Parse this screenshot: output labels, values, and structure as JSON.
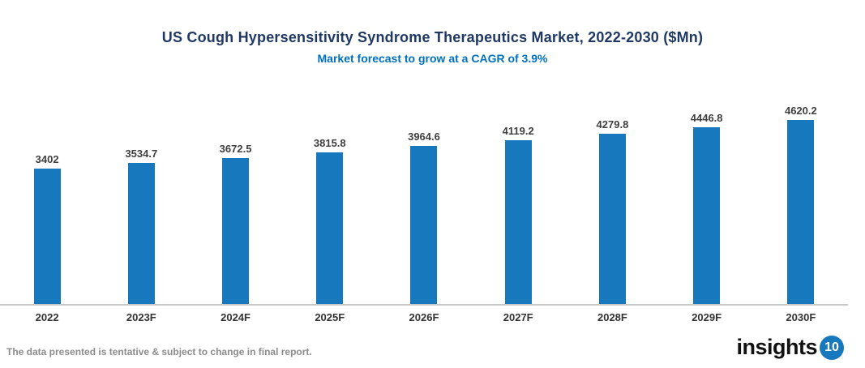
{
  "header": {
    "title": "US Cough Hypersensitivity Syndrome Therapeutics Market, 2022-2030 ($Mn)",
    "subtitle": "Market forecast to grow at a CAGR of 3.9%"
  },
  "chart_data": {
    "type": "bar",
    "title": "US Cough Hypersensitivity Syndrome Therapeutics Market, 2022-2030 ($Mn)",
    "subtitle": "Market forecast to grow at a CAGR of 3.9%",
    "categories": [
      "2022",
      "2023F",
      "2024F",
      "2025F",
      "2026F",
      "2027F",
      "2028F",
      "2029F",
      "2030F"
    ],
    "values": [
      3402,
      3534.7,
      3672.5,
      3815.8,
      3964.6,
      4119.2,
      4279.8,
      4446.8,
      4620.2
    ],
    "value_labels": [
      "3402",
      "3534.7",
      "3672.5",
      "3815.8",
      "3964.6",
      "4119.2",
      "4279.8",
      "4446.8",
      "4620.2"
    ],
    "xlabel": "",
    "ylabel": "",
    "ylim": [
      0,
      4850
    ],
    "grid": false,
    "legend": false,
    "bars_start_at_zero": true
  },
  "footer": {
    "disclaimer": "The data presented is tentative & subject to change in final report.",
    "logo_text": "insights",
    "logo_badge": "10"
  },
  "colors": {
    "title": "#1F3864",
    "subtitle": "#0070C0",
    "bar": "#1878BE",
    "axis_line": "#C9C9C9",
    "value_label": "#3F3F3F",
    "tick_label": "#333333",
    "disclaimer": "#8C8C8C",
    "logo_badge_bg": "#1878BE"
  }
}
